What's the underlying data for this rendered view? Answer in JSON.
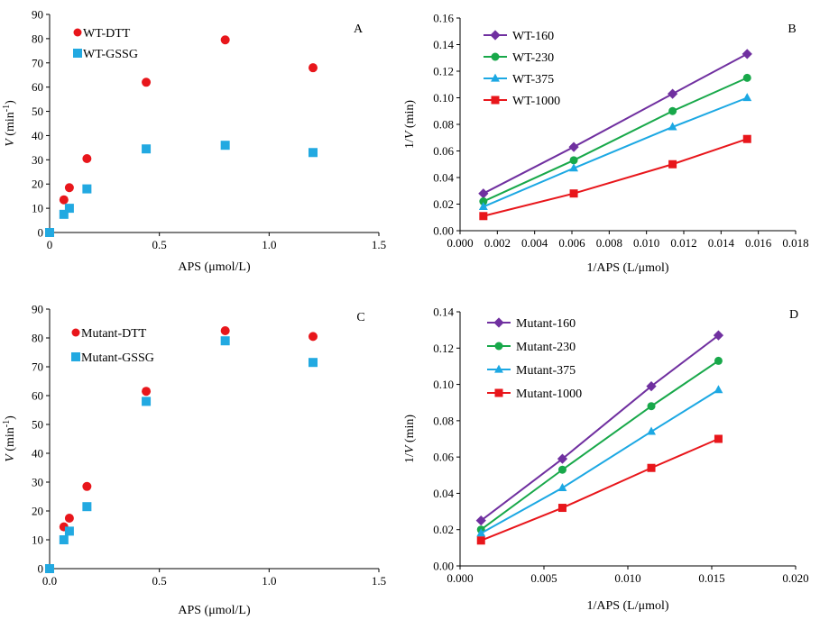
{
  "chart_data": [
    {
      "id": "A",
      "type": "scatter",
      "panel_label": "A",
      "xlabel": "APS (μmol/L)",
      "ylabel_italic": "V",
      "ylabel_rest": " (min",
      "ylabel_sup": "-1",
      "ylabel_end": ")",
      "xlim": [
        0,
        1.5
      ],
      "ylim": [
        0,
        90
      ],
      "xticks": [
        "0",
        "0.5",
        "1.0",
        "1.5"
      ],
      "xtick_values": [
        0,
        0.5,
        1.0,
        1.5
      ],
      "yticks": [
        "0",
        "10",
        "20",
        "30",
        "40",
        "50",
        "60",
        "70",
        "80",
        "90"
      ],
      "ytick_values": [
        0,
        10,
        20,
        30,
        40,
        50,
        60,
        70,
        80,
        90
      ],
      "legend_position": "top-left",
      "series": [
        {
          "name": "WT-DTT",
          "marker": "circle",
          "color": "#E8161B",
          "x": [
            0,
            0.065,
            0.09,
            0.17,
            0.44,
            0.8,
            1.2
          ],
          "y": [
            0,
            13.5,
            18.5,
            30.5,
            62,
            79.5,
            68
          ]
        },
        {
          "name": "WT-GSSG",
          "marker": "square",
          "color": "#22A9E1",
          "x": [
            0,
            0.065,
            0.09,
            0.17,
            0.44,
            0.8,
            1.2
          ],
          "y": [
            0,
            7.5,
            10,
            18,
            34.5,
            36,
            33
          ]
        }
      ]
    },
    {
      "id": "B",
      "type": "line",
      "panel_label": "B",
      "xlabel": "1/APS (L/μmol)",
      "ylabel_prefix": "1/",
      "ylabel_italic": "V",
      "ylabel_rest": " (min)",
      "xlim": [
        0,
        0.018
      ],
      "ylim": [
        0,
        0.16
      ],
      "xticks": [
        "0.000",
        "0.002",
        "0.004",
        "0.006",
        "0.008",
        "0.010",
        "0.012",
        "0.014",
        "0.016",
        "0.018"
      ],
      "xtick_values": [
        0,
        0.002,
        0.004,
        0.006,
        0.008,
        0.01,
        0.012,
        0.014,
        0.016,
        0.018
      ],
      "yticks": [
        "0.00",
        "0.02",
        "0.04",
        "0.06",
        "0.08",
        "0.10",
        "0.12",
        "0.14",
        "0.16"
      ],
      "ytick_values": [
        0,
        0.02,
        0.04,
        0.06,
        0.08,
        0.1,
        0.12,
        0.14,
        0.16
      ],
      "legend_position": "top-left",
      "series": [
        {
          "name": "WT-160",
          "marker": "diamond",
          "color": "#7030A0",
          "x": [
            0.00125,
            0.0061,
            0.0114,
            0.0154
          ],
          "y": [
            0.028,
            0.063,
            0.103,
            0.133
          ]
        },
        {
          "name": "WT-230",
          "marker": "circle",
          "color": "#18A84A",
          "x": [
            0.00125,
            0.0061,
            0.0114,
            0.0154
          ],
          "y": [
            0.022,
            0.053,
            0.09,
            0.115
          ]
        },
        {
          "name": "WT-375",
          "marker": "triangle",
          "color": "#1CA8E3",
          "x": [
            0.00125,
            0.0061,
            0.0114,
            0.0154
          ],
          "y": [
            0.018,
            0.047,
            0.078,
            0.1
          ]
        },
        {
          "name": "WT-1000",
          "marker": "square",
          "color": "#E8161B",
          "x": [
            0.00125,
            0.0061,
            0.0114,
            0.0154
          ],
          "y": [
            0.011,
            0.028,
            0.05,
            0.069
          ]
        }
      ]
    },
    {
      "id": "C",
      "type": "scatter",
      "panel_label": "C",
      "xlabel": "APS (μmol/L)",
      "ylabel_italic": "V",
      "ylabel_rest": " (min",
      "ylabel_sup": "-1",
      "ylabel_end": ")",
      "xlim": [
        0,
        1.5
      ],
      "ylim": [
        0,
        90
      ],
      "xticks": [
        "0.0",
        "0.5",
        "1.0",
        "1.5"
      ],
      "xtick_values": [
        0,
        0.5,
        1.0,
        1.5
      ],
      "yticks": [
        "0",
        "10",
        "20",
        "30",
        "40",
        "50",
        "60",
        "70",
        "80",
        "90"
      ],
      "ytick_values": [
        0,
        10,
        20,
        30,
        40,
        50,
        60,
        70,
        80,
        90
      ],
      "legend_position": "top-left",
      "series": [
        {
          "name": "Mutant-DTT",
          "marker": "circle",
          "color": "#E8161B",
          "x": [
            0,
            0.065,
            0.09,
            0.17,
            0.44,
            0.8,
            1.2
          ],
          "y": [
            0,
            14.5,
            17.5,
            28.5,
            61.5,
            82.5,
            80.5
          ]
        },
        {
          "name": "Mutant-GSSG",
          "marker": "square",
          "color": "#22A9E1",
          "x": [
            0,
            0.065,
            0.09,
            0.17,
            0.44,
            0.8,
            1.2
          ],
          "y": [
            0,
            10,
            13,
            21.5,
            58,
            79,
            71.5
          ]
        }
      ]
    },
    {
      "id": "D",
      "type": "line",
      "panel_label": "D",
      "xlabel": "1/APS (L/μmol)",
      "ylabel_prefix": "1/",
      "ylabel_italic": "V",
      "ylabel_rest": " (min)",
      "xlim": [
        0,
        0.02
      ],
      "ylim": [
        0,
        0.14
      ],
      "xticks": [
        "0.000",
        "0.005",
        "0.010",
        "0.015",
        "0.020"
      ],
      "xtick_values": [
        0,
        0.005,
        0.01,
        0.015,
        0.02
      ],
      "yticks": [
        "0.00",
        "0.02",
        "0.04",
        "0.06",
        "0.08",
        "0.10",
        "0.12",
        "0.14"
      ],
      "ytick_values": [
        0,
        0.02,
        0.04,
        0.06,
        0.08,
        0.1,
        0.12,
        0.14
      ],
      "legend_position": "top-left",
      "series": [
        {
          "name": "Mutant-160",
          "marker": "diamond",
          "color": "#7030A0",
          "x": [
            0.00125,
            0.0061,
            0.0114,
            0.0154
          ],
          "y": [
            0.025,
            0.059,
            0.099,
            0.127
          ]
        },
        {
          "name": "Mutant-230",
          "marker": "circle",
          "color": "#18A84A",
          "x": [
            0.00125,
            0.0061,
            0.0114,
            0.0154
          ],
          "y": [
            0.02,
            0.053,
            0.088,
            0.113
          ]
        },
        {
          "name": "Mutant-375",
          "marker": "triangle",
          "color": "#1CA8E3",
          "x": [
            0.00125,
            0.0061,
            0.0114,
            0.0154
          ],
          "y": [
            0.018,
            0.043,
            0.074,
            0.097
          ]
        },
        {
          "name": "Mutant-1000",
          "marker": "square",
          "color": "#E8161B",
          "x": [
            0.00125,
            0.0061,
            0.0114,
            0.0154
          ],
          "y": [
            0.014,
            0.032,
            0.054,
            0.07
          ]
        }
      ]
    }
  ]
}
